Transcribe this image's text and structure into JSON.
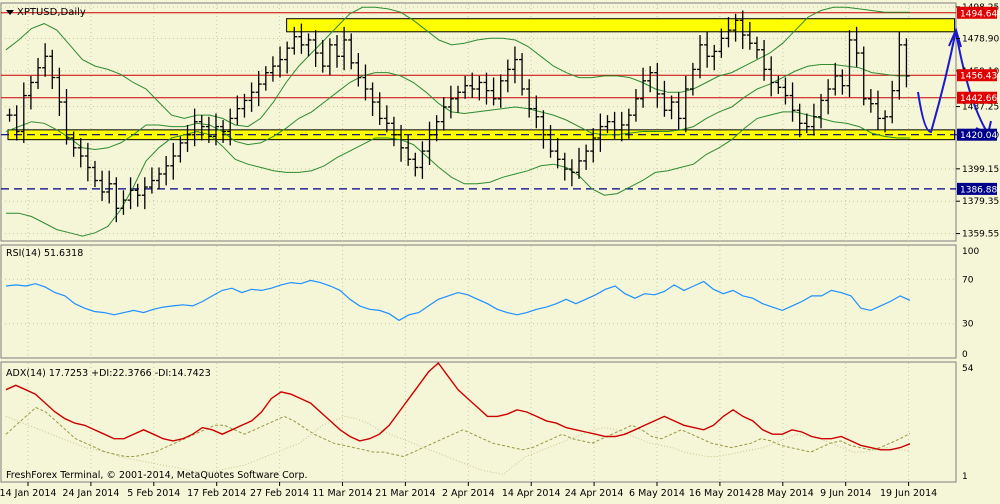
{
  "window": {
    "symbol_label": "XPTUSD,Daily",
    "copyright": "FreshForex Terminal, © 2001-2014, MetaQuotes Software Corp."
  },
  "colors": {
    "background": "#f5f5d8",
    "grid": "#c8c8a0",
    "candle": "#000000",
    "bollinger": "#2e8b2e",
    "resistance": "#cc0000",
    "zone": "#ffff00",
    "support": "#000080",
    "arrow": "#1a1acc",
    "rsi": "#1e90ff",
    "adx": "#cc0000",
    "plus_di": "#9a9a40",
    "minus_di": "#c8c890",
    "price_tag_red": "#e00000",
    "price_tag_blue": "#00008b"
  },
  "chart_data": [
    {
      "id": "price",
      "type": "ohlc",
      "title": "XPTUSD,Daily",
      "ylim": [
        1355,
        1500
      ],
      "y_ticks": [
        {
          "value": 1498.25,
          "label": "1498.25"
        },
        {
          "value": 1478.9,
          "label": "1478.90"
        },
        {
          "value": 1459.1,
          "label": "1459.10"
        },
        {
          "value": 1437.25,
          "label": "1437.25"
        },
        {
          "value": 1420.0,
          "label": "1420.00"
        },
        {
          "value": 1399.15,
          "label": "1399.15"
        },
        {
          "value": 1379.35,
          "label": "1379.35"
        },
        {
          "value": 1359.55,
          "label": "1359.55"
        }
      ],
      "x_labels": [
        "14 Jan 2014",
        "24 Jan 2014",
        "5 Feb 2014",
        "17 Feb 2014",
        "27 Feb 2014",
        "11 Mar 2014",
        "21 Mar 2014",
        "2 Apr 2014",
        "14 Apr 2014",
        "24 Apr 2014",
        "6 May 2014",
        "16 May 2014",
        "28 May 2014",
        "9 Jun 2014",
        "19 Jun 2014"
      ],
      "close": [
        1432,
        1422,
        1444,
        1452,
        1461,
        1468,
        1455,
        1440,
        1418,
        1412,
        1407,
        1400,
        1392,
        1385,
        1390,
        1375,
        1380,
        1386,
        1383,
        1388,
        1392,
        1396,
        1401,
        1407,
        1415,
        1420,
        1428,
        1425,
        1419,
        1425,
        1422,
        1430,
        1436,
        1441,
        1446,
        1451,
        1458,
        1462,
        1466,
        1473,
        1480,
        1475,
        1478,
        1470,
        1462,
        1475,
        1468,
        1478,
        1464,
        1455,
        1448,
        1440,
        1430,
        1427,
        1420,
        1412,
        1405,
        1400,
        1410,
        1420,
        1428,
        1437,
        1442,
        1446,
        1450,
        1448,
        1452,
        1447,
        1442,
        1453,
        1460,
        1466,
        1448,
        1436,
        1431,
        1420,
        1410,
        1405,
        1399,
        1397,
        1404,
        1410,
        1418,
        1425,
        1428,
        1423,
        1426,
        1432,
        1442,
        1453,
        1458,
        1445,
        1435,
        1440,
        1430,
        1448,
        1460,
        1475,
        1468,
        1471,
        1479,
        1484,
        1490,
        1481,
        1476,
        1472,
        1460,
        1452,
        1449,
        1444,
        1435,
        1427,
        1425,
        1431,
        1441,
        1448,
        1456,
        1450,
        1478,
        1470,
        1442,
        1439,
        1430,
        1431,
        1447,
        1475,
        1456
      ],
      "horizontal_lines": [
        {
          "value": 1494.64,
          "label": "1494.64",
          "style": "solid",
          "color": "resistance"
        },
        {
          "value": 1456.43,
          "label": "1456.43",
          "style": "solid",
          "color": "resistance"
        },
        {
          "value": 1442.66,
          "label": "1442.66",
          "style": "solid",
          "color": "resistance"
        },
        {
          "value": 1420.04,
          "label": "1420.04",
          "style": "dashed",
          "color": "support"
        },
        {
          "value": 1386.88,
          "label": "1386.88",
          "style": "dashed",
          "color": "support"
        }
      ],
      "zones": [
        {
          "from_date": "27 Feb 2014",
          "to_date": "19 Jun 2014",
          "low": 1483,
          "high": 1491
        },
        {
          "from_date": "14 Jan 2014",
          "to_date": "19 Jun 2014",
          "low": 1417,
          "high": 1423
        }
      ],
      "bollinger": {
        "upper": [
          1472,
          1478,
          1485,
          1488,
          1484,
          1475,
          1466,
          1462,
          1460,
          1457,
          1452,
          1448,
          1440,
          1432,
          1430,
          1432,
          1432,
          1430,
          1426,
          1425,
          1430,
          1440,
          1452,
          1462,
          1470,
          1478,
          1486,
          1494,
          1498,
          1498,
          1497,
          1495,
          1490,
          1484,
          1478,
          1475,
          1476,
          1478,
          1479,
          1479,
          1478,
          1474,
          1468,
          1462,
          1458,
          1455,
          1455,
          1456,
          1456,
          1455,
          1452,
          1448,
          1446,
          1446,
          1448,
          1452,
          1456,
          1458,
          1462,
          1466,
          1470,
          1476,
          1484,
          1492,
          1496,
          1498,
          1498,
          1497,
          1496,
          1495,
          1495,
          1495
        ],
        "lower": [
          1372,
          1372,
          1370,
          1366,
          1362,
          1360,
          1358,
          1360,
          1364,
          1374,
          1388,
          1404,
          1412,
          1418,
          1420,
          1422,
          1420,
          1413,
          1405,
          1402,
          1400,
          1398,
          1397,
          1397,
          1398,
          1401,
          1406,
          1410,
          1414,
          1418,
          1418,
          1417,
          1414,
          1407,
          1400,
          1394,
          1390,
          1390,
          1391,
          1394,
          1396,
          1398,
          1401,
          1402,
          1400,
          1395,
          1387,
          1383,
          1384,
          1388,
          1392,
          1397,
          1398,
          1400,
          1402,
          1408,
          1412,
          1417,
          1424,
          1430,
          1432,
          1434,
          1434,
          1432,
          1430,
          1428,
          1427,
          1425,
          1421,
          1419,
          1418,
          1418
        ],
        "middle": [
          1422,
          1425,
          1428,
          1427,
          1423,
          1418,
          1412,
          1411,
          1412,
          1415,
          1420,
          1426,
          1426,
          1425,
          1425,
          1427,
          1426,
          1422,
          1416,
          1414,
          1415,
          1419,
          1424,
          1430,
          1434,
          1440,
          1446,
          1452,
          1456,
          1458,
          1458,
          1456,
          1452,
          1446,
          1439,
          1434,
          1433,
          1434,
          1435,
          1436,
          1437,
          1436,
          1434,
          1432,
          1429,
          1425,
          1421,
          1420,
          1420,
          1421,
          1422,
          1422,
          1422,
          1423,
          1425,
          1430,
          1434,
          1437,
          1443,
          1448,
          1451,
          1455,
          1459,
          1462,
          1463,
          1463,
          1462,
          1461,
          1458,
          1457,
          1456,
          1456
        ]
      }
    },
    {
      "id": "rsi",
      "type": "line",
      "title": "RSI(14) 51.6318",
      "ylim": [
        0,
        100
      ],
      "y_ticks": [
        {
          "value": 100,
          "label": "100"
        },
        {
          "value": 70,
          "label": "70"
        },
        {
          "value": 30,
          "label": "30"
        },
        {
          "value": 0,
          "label": "0"
        }
      ],
      "reference_lines": [
        70,
        30
      ],
      "values": [
        64,
        65,
        64,
        66,
        63,
        58,
        55,
        48,
        44,
        41,
        40,
        38,
        40,
        42,
        40,
        43,
        45,
        46,
        47,
        46,
        50,
        55,
        60,
        62,
        58,
        61,
        60,
        62,
        65,
        67,
        66,
        69,
        67,
        64,
        60,
        52,
        46,
        43,
        42,
        39,
        33,
        38,
        40,
        46,
        52,
        55,
        58,
        56,
        52,
        48,
        43,
        40,
        38,
        40,
        43,
        45,
        48,
        52,
        48,
        52,
        56,
        61,
        64,
        57,
        53,
        57,
        56,
        59,
        65,
        60,
        64,
        68,
        61,
        57,
        60,
        55,
        53,
        48,
        45,
        42,
        46,
        50,
        55,
        55,
        60,
        58,
        55,
        44,
        42,
        46,
        50,
        55,
        51
      ]
    },
    {
      "id": "adx",
      "type": "line",
      "title": "ADX(14) 17.7253 +DI:22.3766 -DI:14.7423",
      "ylim": [
        1,
        54
      ],
      "y_ticks": [
        {
          "value": 54,
          "label": "54"
        },
        {
          "value": 1,
          "label": "1"
        }
      ],
      "series": [
        {
          "name": "ADX",
          "color": "adx",
          "values": [
            42,
            44,
            42,
            40,
            36,
            32,
            29,
            27,
            26,
            24,
            22,
            20,
            20,
            22,
            24,
            22,
            20,
            19,
            20,
            22,
            25,
            24,
            22,
            24,
            26,
            28,
            32,
            38,
            41,
            40,
            38,
            36,
            32,
            28,
            24,
            21,
            19,
            20,
            22,
            26,
            32,
            38,
            44,
            50,
            54,
            48,
            42,
            38,
            34,
            30,
            30,
            31,
            33,
            32,
            30,
            28,
            27,
            25,
            24,
            23,
            22,
            21,
            21,
            22,
            24,
            26,
            28,
            30,
            28,
            26,
            25,
            24,
            26,
            30,
            33,
            30,
            28,
            24,
            22,
            22,
            24,
            23,
            21,
            20,
            20,
            21,
            19,
            17,
            16,
            15,
            15,
            16,
            17.7
          ]
        },
        {
          "name": "+DI",
          "color": "plus_di",
          "values": [
            22,
            26,
            30,
            34,
            32,
            28,
            24,
            20,
            18,
            16,
            14,
            13,
            12,
            12,
            13,
            14,
            16,
            18,
            20,
            22,
            24,
            26,
            26,
            24,
            22,
            24,
            26,
            28,
            30,
            28,
            25,
            22,
            20,
            18,
            17,
            16,
            15,
            14,
            14,
            13,
            12,
            14,
            16,
            18,
            20,
            22,
            24,
            22,
            20,
            18,
            17,
            16,
            15,
            16,
            18,
            20,
            22,
            20,
            19,
            18,
            20,
            22,
            24,
            26,
            24,
            21,
            20,
            22,
            24,
            22,
            20,
            18,
            17,
            16,
            17,
            18,
            20,
            19,
            17,
            16,
            15,
            14,
            16,
            18,
            19,
            17,
            16,
            15,
            16,
            18,
            20,
            22.4
          ]
        },
        {
          "name": "-DI",
          "color": "minus_di",
          "values": [
            30,
            28,
            26,
            24,
            22,
            20,
            18,
            16,
            15,
            14,
            12,
            11,
            10,
            9,
            8,
            7,
            6,
            5,
            5,
            6,
            7,
            8,
            10,
            12,
            14,
            16,
            18,
            22,
            26,
            28,
            30,
            29,
            27,
            24,
            22,
            20,
            18,
            16,
            14,
            12,
            10,
            8,
            6,
            5,
            4,
            8,
            12,
            14,
            16,
            18,
            20,
            22,
            24,
            25,
            24,
            22,
            20,
            18,
            17,
            16,
            14,
            13,
            12,
            12,
            13,
            14,
            15,
            16,
            18,
            20,
            22,
            21,
            20,
            18,
            16,
            14,
            14,
            15,
            16,
            15,
            14.7
          ]
        }
      ]
    }
  ]
}
